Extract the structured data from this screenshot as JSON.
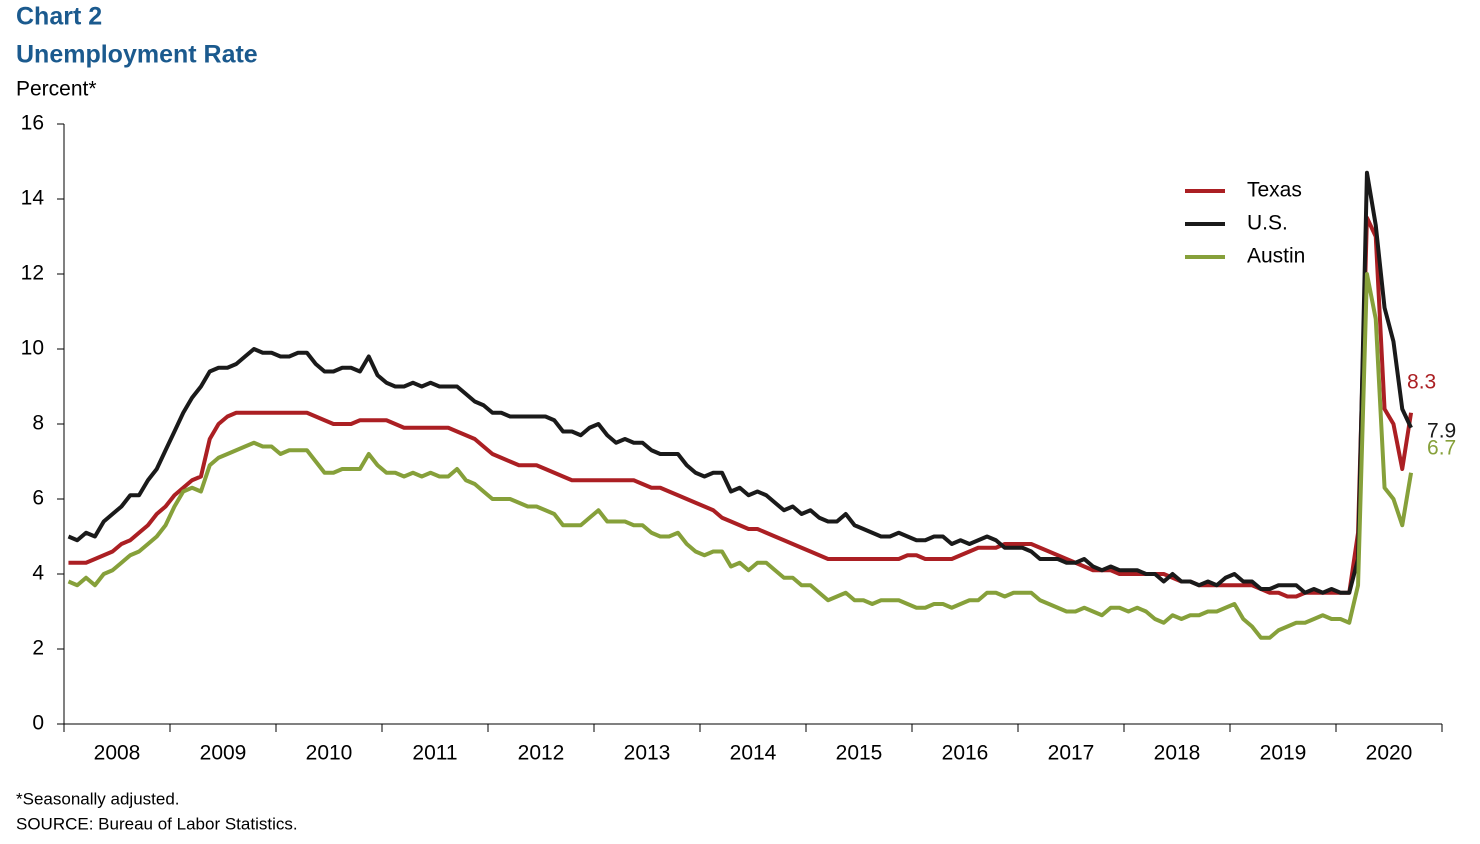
{
  "chart_data": {
    "type": "line",
    "title": "Chart 2",
    "subtitle": "Unemployment Rate",
    "y_label": "Percent*",
    "notes": [
      "*Seasonally adjusted.",
      "SOURCE: Bureau of Labor Statistics."
    ],
    "xlim": [
      2008,
      2021
    ],
    "xticks": [
      2008,
      2009,
      2010,
      2011,
      2012,
      2013,
      2014,
      2015,
      2016,
      2017,
      2018,
      2019,
      2020,
      2021
    ],
    "xtick_labels": [
      {
        "value": 2008.5,
        "label": "2008"
      },
      {
        "value": 2009.5,
        "label": "2009"
      },
      {
        "value": 2010.5,
        "label": "2010"
      },
      {
        "value": 2011.5,
        "label": "2011"
      },
      {
        "value": 2012.5,
        "label": "2012"
      },
      {
        "value": 2013.5,
        "label": "2013"
      },
      {
        "value": 2014.5,
        "label": "2014"
      },
      {
        "value": 2015.5,
        "label": "2015"
      },
      {
        "value": 2016.5,
        "label": "2016"
      },
      {
        "value": 2017.5,
        "label": "2017"
      },
      {
        "value": 2018.5,
        "label": "2018"
      },
      {
        "value": 2019.5,
        "label": "2019"
      },
      {
        "value": 2020.5,
        "label": "2020"
      }
    ],
    "ylim": [
      0,
      16
    ],
    "yticks": [
      0,
      2,
      4,
      6,
      8,
      10,
      12,
      14,
      16
    ],
    "legend": "upper right",
    "data_labels": "last",
    "x": [
      2008.042,
      2008.125,
      2008.208,
      2008.292,
      2008.375,
      2008.458,
      2008.542,
      2008.625,
      2008.708,
      2008.792,
      2008.875,
      2008.958,
      2009.042,
      2009.125,
      2009.208,
      2009.292,
      2009.375,
      2009.458,
      2009.542,
      2009.625,
      2009.708,
      2009.792,
      2009.875,
      2009.958,
      2010.042,
      2010.125,
      2010.208,
      2010.292,
      2010.375,
      2010.458,
      2010.542,
      2010.625,
      2010.708,
      2010.792,
      2010.875,
      2010.958,
      2011.042,
      2011.125,
      2011.208,
      2011.292,
      2011.375,
      2011.458,
      2011.542,
      2011.625,
      2011.708,
      2011.792,
      2011.875,
      2011.958,
      2012.042,
      2012.125,
      2012.208,
      2012.292,
      2012.375,
      2012.458,
      2012.542,
      2012.625,
      2012.708,
      2012.792,
      2012.875,
      2012.958,
      2013.042,
      2013.125,
      2013.208,
      2013.292,
      2013.375,
      2013.458,
      2013.542,
      2013.625,
      2013.708,
      2013.792,
      2013.875,
      2013.958,
      2014.042,
      2014.125,
      2014.208,
      2014.292,
      2014.375,
      2014.458,
      2014.542,
      2014.625,
      2014.708,
      2014.792,
      2014.875,
      2014.958,
      2015.042,
      2015.125,
      2015.208,
      2015.292,
      2015.375,
      2015.458,
      2015.542,
      2015.625,
      2015.708,
      2015.792,
      2015.875,
      2015.958,
      2016.042,
      2016.125,
      2016.208,
      2016.292,
      2016.375,
      2016.458,
      2016.542,
      2016.625,
      2016.708,
      2016.792,
      2016.875,
      2016.958,
      2017.042,
      2017.125,
      2017.208,
      2017.292,
      2017.375,
      2017.458,
      2017.542,
      2017.625,
      2017.708,
      2017.792,
      2017.875,
      2017.958,
      2018.042,
      2018.125,
      2018.208,
      2018.292,
      2018.375,
      2018.458,
      2018.542,
      2018.625,
      2018.708,
      2018.792,
      2018.875,
      2018.958,
      2019.042,
      2019.125,
      2019.208,
      2019.292,
      2019.375,
      2019.458,
      2019.542,
      2019.625,
      2019.708,
      2019.792,
      2019.875,
      2019.958,
      2020.042,
      2020.125,
      2020.208,
      2020.292,
      2020.375,
      2020.458,
      2020.542,
      2020.625,
      2020.708
    ],
    "series": [
      {
        "name": "Texas",
        "color": "#ab1f23",
        "values": [
          4.3,
          4.3,
          4.3,
          4.4,
          4.5,
          4.6,
          4.8,
          4.9,
          5.1,
          5.3,
          5.6,
          5.8,
          6.1,
          6.3,
          6.5,
          6.6,
          7.6,
          8.0,
          8.2,
          8.3,
          8.3,
          8.3,
          8.3,
          8.3,
          8.3,
          8.3,
          8.3,
          8.3,
          8.2,
          8.1,
          8.0,
          8.0,
          8.0,
          8.1,
          8.1,
          8.1,
          8.1,
          8.0,
          7.9,
          7.9,
          7.9,
          7.9,
          7.9,
          7.9,
          7.8,
          7.7,
          7.6,
          7.4,
          7.2,
          7.1,
          7.0,
          6.9,
          6.9,
          6.9,
          6.8,
          6.7,
          6.6,
          6.5,
          6.5,
          6.5,
          6.5,
          6.5,
          6.5,
          6.5,
          6.5,
          6.4,
          6.3,
          6.3,
          6.2,
          6.1,
          6.0,
          5.9,
          5.8,
          5.7,
          5.5,
          5.4,
          5.3,
          5.2,
          5.2,
          5.1,
          5.0,
          4.9,
          4.8,
          4.7,
          4.6,
          4.5,
          4.4,
          4.4,
          4.4,
          4.4,
          4.4,
          4.4,
          4.4,
          4.4,
          4.4,
          4.5,
          4.5,
          4.4,
          4.4,
          4.4,
          4.4,
          4.5,
          4.6,
          4.7,
          4.7,
          4.7,
          4.8,
          4.8,
          4.8,
          4.8,
          4.7,
          4.6,
          4.5,
          4.4,
          4.3,
          4.2,
          4.1,
          4.1,
          4.1,
          4.0,
          4.0,
          4.0,
          4.0,
          4.0,
          4.0,
          3.9,
          3.8,
          3.8,
          3.7,
          3.7,
          3.7,
          3.7,
          3.7,
          3.7,
          3.7,
          3.6,
          3.5,
          3.5,
          3.4,
          3.4,
          3.5,
          3.5,
          3.5,
          3.5,
          3.5,
          3.5,
          5.1,
          13.5,
          13.0,
          8.4,
          8.0,
          6.8,
          8.3
        ]
      },
      {
        "name": "U.S.",
        "color": "#1a1a1a",
        "values": [
          5.0,
          4.9,
          5.1,
          5.0,
          5.4,
          5.6,
          5.8,
          6.1,
          6.1,
          6.5,
          6.8,
          7.3,
          7.8,
          8.3,
          8.7,
          9.0,
          9.4,
          9.5,
          9.5,
          9.6,
          9.8,
          10.0,
          9.9,
          9.9,
          9.8,
          9.8,
          9.9,
          9.9,
          9.6,
          9.4,
          9.4,
          9.5,
          9.5,
          9.4,
          9.8,
          9.3,
          9.1,
          9.0,
          9.0,
          9.1,
          9.0,
          9.1,
          9.0,
          9.0,
          9.0,
          8.8,
          8.6,
          8.5,
          8.3,
          8.3,
          8.2,
          8.2,
          8.2,
          8.2,
          8.2,
          8.1,
          7.8,
          7.8,
          7.7,
          7.9,
          8.0,
          7.7,
          7.5,
          7.6,
          7.5,
          7.5,
          7.3,
          7.2,
          7.2,
          7.2,
          6.9,
          6.7,
          6.6,
          6.7,
          6.7,
          6.2,
          6.3,
          6.1,
          6.2,
          6.1,
          5.9,
          5.7,
          5.8,
          5.6,
          5.7,
          5.5,
          5.4,
          5.4,
          5.6,
          5.3,
          5.2,
          5.1,
          5.0,
          5.0,
          5.1,
          5.0,
          4.9,
          4.9,
          5.0,
          5.0,
          4.8,
          4.9,
          4.8,
          4.9,
          5.0,
          4.9,
          4.7,
          4.7,
          4.7,
          4.6,
          4.4,
          4.4,
          4.4,
          4.3,
          4.3,
          4.4,
          4.2,
          4.1,
          4.2,
          4.1,
          4.1,
          4.1,
          4.0,
          4.0,
          3.8,
          4.0,
          3.8,
          3.8,
          3.7,
          3.8,
          3.7,
          3.9,
          4.0,
          3.8,
          3.8,
          3.6,
          3.6,
          3.7,
          3.7,
          3.7,
          3.5,
          3.6,
          3.5,
          3.6,
          3.5,
          3.5,
          4.4,
          14.7,
          13.3,
          11.1,
          10.2,
          8.4,
          7.9
        ]
      },
      {
        "name": "Austin",
        "color": "#86a03a",
        "values": [
          3.8,
          3.7,
          3.9,
          3.7,
          4.0,
          4.1,
          4.3,
          4.5,
          4.6,
          4.8,
          5.0,
          5.3,
          5.8,
          6.2,
          6.3,
          6.2,
          6.9,
          7.1,
          7.2,
          7.3,
          7.4,
          7.5,
          7.4,
          7.4,
          7.2,
          7.3,
          7.3,
          7.3,
          7.0,
          6.7,
          6.7,
          6.8,
          6.8,
          6.8,
          7.2,
          6.9,
          6.7,
          6.7,
          6.6,
          6.7,
          6.6,
          6.7,
          6.6,
          6.6,
          6.8,
          6.5,
          6.4,
          6.2,
          6.0,
          6.0,
          6.0,
          5.9,
          5.8,
          5.8,
          5.7,
          5.6,
          5.3,
          5.3,
          5.3,
          5.5,
          5.7,
          5.4,
          5.4,
          5.4,
          5.3,
          5.3,
          5.1,
          5.0,
          5.0,
          5.1,
          4.8,
          4.6,
          4.5,
          4.6,
          4.6,
          4.2,
          4.3,
          4.1,
          4.3,
          4.3,
          4.1,
          3.9,
          3.9,
          3.7,
          3.7,
          3.5,
          3.3,
          3.4,
          3.5,
          3.3,
          3.3,
          3.2,
          3.3,
          3.3,
          3.3,
          3.2,
          3.1,
          3.1,
          3.2,
          3.2,
          3.1,
          3.2,
          3.3,
          3.3,
          3.5,
          3.5,
          3.4,
          3.5,
          3.5,
          3.5,
          3.3,
          3.2,
          3.1,
          3.0,
          3.0,
          3.1,
          3.0,
          2.9,
          3.1,
          3.1,
          3.0,
          3.1,
          3.0,
          2.8,
          2.7,
          2.9,
          2.8,
          2.9,
          2.9,
          3.0,
          3.0,
          3.1,
          3.2,
          2.8,
          2.6,
          2.3,
          2.3,
          2.5,
          2.6,
          2.7,
          2.7,
          2.8,
          2.9,
          2.8,
          2.8,
          2.7,
          3.7,
          12.0,
          10.8,
          6.3,
          6.0,
          5.3,
          6.7
        ]
      }
    ]
  }
}
